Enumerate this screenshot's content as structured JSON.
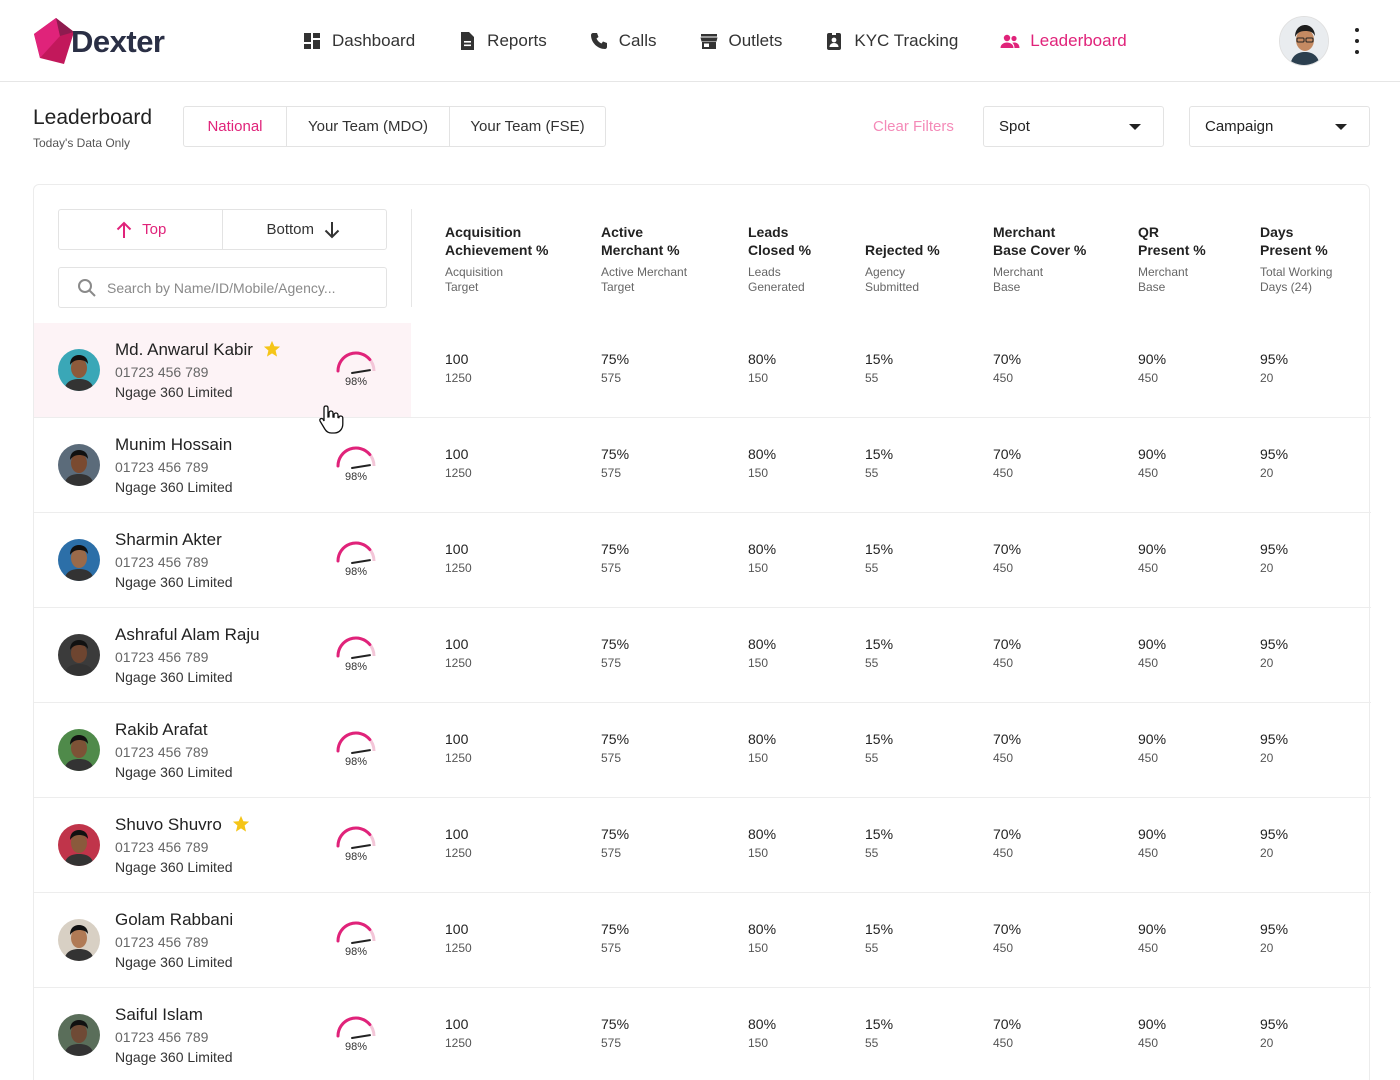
{
  "app": {
    "logo_text": "Dexter",
    "accent": "#e0237a"
  },
  "nav": {
    "items": [
      {
        "label": "Dashboard",
        "icon": "dashboard-icon",
        "active": false
      },
      {
        "label": "Reports",
        "icon": "reports-icon",
        "active": false
      },
      {
        "label": "Calls",
        "icon": "phone-icon",
        "active": false
      },
      {
        "label": "Outlets",
        "icon": "store-icon",
        "active": false
      },
      {
        "label": "KYC Tracking",
        "icon": "id-badge-icon",
        "active": false
      },
      {
        "label": "Leaderboard",
        "icon": "people-icon",
        "active": true
      }
    ]
  },
  "header": {
    "title": "Leaderboard",
    "subtitle": "Today's Data Only",
    "scope_tabs": [
      "National",
      "Your Team (MDO)",
      "Your Team (FSE)"
    ],
    "scope_active": "National",
    "clear_filters": "Clear Filters",
    "spot_dropdown": "Spot",
    "campaign_dropdown": "Campaign"
  },
  "panel": {
    "top_label": "Top",
    "bottom_label": "Bottom",
    "search_placeholder": "Search by Name/ID/Mobile/Agency..."
  },
  "columns": [
    {
      "title_lines": [
        "Acquisition",
        "Achievement %"
      ],
      "sub_lines": [
        "Acquisition",
        "Target"
      ]
    },
    {
      "title_lines": [
        "Active",
        "Merchant %"
      ],
      "sub_lines": [
        "Active Merchant",
        "Target"
      ]
    },
    {
      "title_lines": [
        "Leads",
        "Closed %"
      ],
      "sub_lines": [
        "Leads",
        "Generated"
      ]
    },
    {
      "title_lines": [
        "Rejected %"
      ],
      "sub_lines": [
        "Agency",
        "Submitted"
      ]
    },
    {
      "title_lines": [
        "Merchant",
        "Base Cover %"
      ],
      "sub_lines": [
        "Merchant",
        "Base"
      ]
    },
    {
      "title_lines": [
        "QR",
        "Present %"
      ],
      "sub_lines": [
        "Merchant",
        "Base"
      ]
    },
    {
      "title_lines": [
        "Days",
        "Present %"
      ],
      "sub_lines": [
        "Total Working",
        "Days (24)"
      ]
    }
  ],
  "rows": [
    {
      "name": "Md. Anwarul Kabir",
      "star": true,
      "phone": "01723 456 789",
      "agency": "Ngage 360 Limited",
      "score": "98%",
      "score_fraction": 0.98,
      "highlight": true,
      "cells": [
        [
          "100",
          "1250"
        ],
        [
          "75%",
          "575"
        ],
        [
          "80%",
          "150"
        ],
        [
          "15%",
          "55"
        ],
        [
          "70%",
          "450"
        ],
        [
          "90%",
          "450"
        ],
        [
          "95%",
          "20"
        ]
      ]
    },
    {
      "name": "Munim Hossain",
      "star": false,
      "phone": "01723 456 789",
      "agency": "Ngage 360 Limited",
      "score": "98%",
      "score_fraction": 0.98,
      "highlight": false,
      "cells": [
        [
          "100",
          "1250"
        ],
        [
          "75%",
          "575"
        ],
        [
          "80%",
          "150"
        ],
        [
          "15%",
          "55"
        ],
        [
          "70%",
          "450"
        ],
        [
          "90%",
          "450"
        ],
        [
          "95%",
          "20"
        ]
      ]
    },
    {
      "name": "Sharmin Akter",
      "star": false,
      "phone": "01723 456 789",
      "agency": "Ngage 360 Limited",
      "score": "98%",
      "score_fraction": 0.98,
      "highlight": false,
      "cells": [
        [
          "100",
          "1250"
        ],
        [
          "75%",
          "575"
        ],
        [
          "80%",
          "150"
        ],
        [
          "15%",
          "55"
        ],
        [
          "70%",
          "450"
        ],
        [
          "90%",
          "450"
        ],
        [
          "95%",
          "20"
        ]
      ]
    },
    {
      "name": "Ashraful Alam Raju",
      "star": false,
      "phone": "01723 456 789",
      "agency": "Ngage 360 Limited",
      "score": "98%",
      "score_fraction": 0.98,
      "highlight": false,
      "cells": [
        [
          "100",
          "1250"
        ],
        [
          "75%",
          "575"
        ],
        [
          "80%",
          "150"
        ],
        [
          "15%",
          "55"
        ],
        [
          "70%",
          "450"
        ],
        [
          "90%",
          "450"
        ],
        [
          "95%",
          "20"
        ]
      ]
    },
    {
      "name": "Rakib Arafat",
      "star": false,
      "phone": "01723 456 789",
      "agency": "Ngage 360 Limited",
      "score": "98%",
      "score_fraction": 0.98,
      "highlight": false,
      "cells": [
        [
          "100",
          "1250"
        ],
        [
          "75%",
          "575"
        ],
        [
          "80%",
          "150"
        ],
        [
          "15%",
          "55"
        ],
        [
          "70%",
          "450"
        ],
        [
          "90%",
          "450"
        ],
        [
          "95%",
          "20"
        ]
      ]
    },
    {
      "name": "Shuvo Shuvro",
      "star": true,
      "phone": "01723 456 789",
      "agency": "Ngage 360 Limited",
      "score": "98%",
      "score_fraction": 0.98,
      "highlight": false,
      "cells": [
        [
          "100",
          "1250"
        ],
        [
          "75%",
          "575"
        ],
        [
          "80%",
          "150"
        ],
        [
          "15%",
          "55"
        ],
        [
          "70%",
          "450"
        ],
        [
          "90%",
          "450"
        ],
        [
          "95%",
          "20"
        ]
      ]
    },
    {
      "name": "Golam Rabbani",
      "star": false,
      "phone": "01723 456 789",
      "agency": "Ngage 360 Limited",
      "score": "98%",
      "score_fraction": 0.98,
      "highlight": false,
      "cells": [
        [
          "100",
          "1250"
        ],
        [
          "75%",
          "575"
        ],
        [
          "80%",
          "150"
        ],
        [
          "15%",
          "55"
        ],
        [
          "70%",
          "450"
        ],
        [
          "90%",
          "450"
        ],
        [
          "95%",
          "20"
        ]
      ]
    },
    {
      "name": "Saiful Islam",
      "star": false,
      "phone": "01723 456 789",
      "agency": "Ngage 360 Limited",
      "score": "98%",
      "score_fraction": 0.98,
      "highlight": false,
      "cells": [
        [
          "100",
          "1250"
        ],
        [
          "75%",
          "575"
        ],
        [
          "80%",
          "150"
        ],
        [
          "15%",
          "55"
        ],
        [
          "70%",
          "450"
        ],
        [
          "90%",
          "450"
        ],
        [
          "95%",
          "20"
        ]
      ]
    }
  ]
}
